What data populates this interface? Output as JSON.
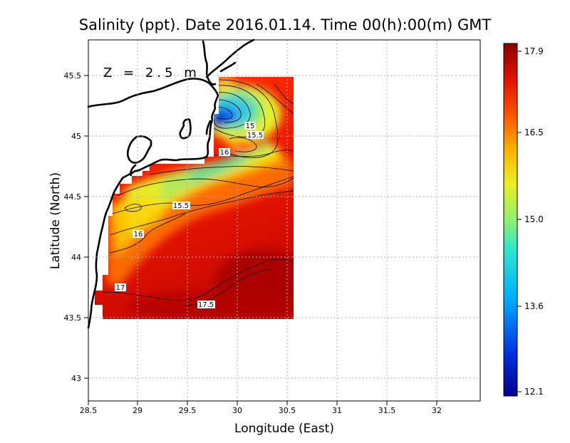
{
  "title": "Salinity (ppt). Date 2016.01.14. Time 00(h):00(m) GMT",
  "depth_label": "Z = 2.5 m",
  "x_axis": {
    "label": "Longitude (East)",
    "ticks": [
      "28.5",
      "29",
      "29.5",
      "30",
      "30.5",
      "31",
      "31.5",
      "32"
    ]
  },
  "y_axis": {
    "label": "Latitude (North)",
    "ticks": [
      "43",
      "43.5",
      "44",
      "44.5",
      "45",
      "45.5"
    ]
  },
  "colorbar": {
    "ticks": [
      "17.9",
      "16.5",
      "15.0",
      "13.6",
      "12.1"
    ]
  },
  "contour_labels": [
    {
      "text": "15",
      "lon": 30.07,
      "lat": 45.08
    },
    {
      "text": "15.5",
      "lon": 30.12,
      "lat": 45.01
    },
    {
      "text": "16",
      "lon": 29.82,
      "lat": 44.86
    },
    {
      "text": "15.5",
      "lon": 29.44,
      "lat": 44.43
    },
    {
      "text": "16",
      "lon": 28.86,
      "lat": 44.19
    },
    {
      "text": "17",
      "lon": 28.75,
      "lat": 43.69
    },
    {
      "text": "17.5",
      "lon": 29.67,
      "lat": 43.6
    }
  ],
  "chart_data": {
    "type": "heatmap",
    "title": "Salinity (ppt). Date 2016.01.14. Time 00(h):00(m) GMT",
    "xlabel": "Longitude (East)",
    "ylabel": "Latitude (North)",
    "xlim": [
      28.5,
      32.4
    ],
    "ylim": [
      42.8,
      45.8
    ],
    "grid": true,
    "colorbar_range": [
      12.1,
      17.9
    ],
    "colors": {
      "max": "#8b0000",
      "high": "#ff2000",
      "mid_high": "#ffd000",
      "mid": "#78e878",
      "mid_low": "#20c8e8",
      "low": "#0000a0"
    }
  }
}
